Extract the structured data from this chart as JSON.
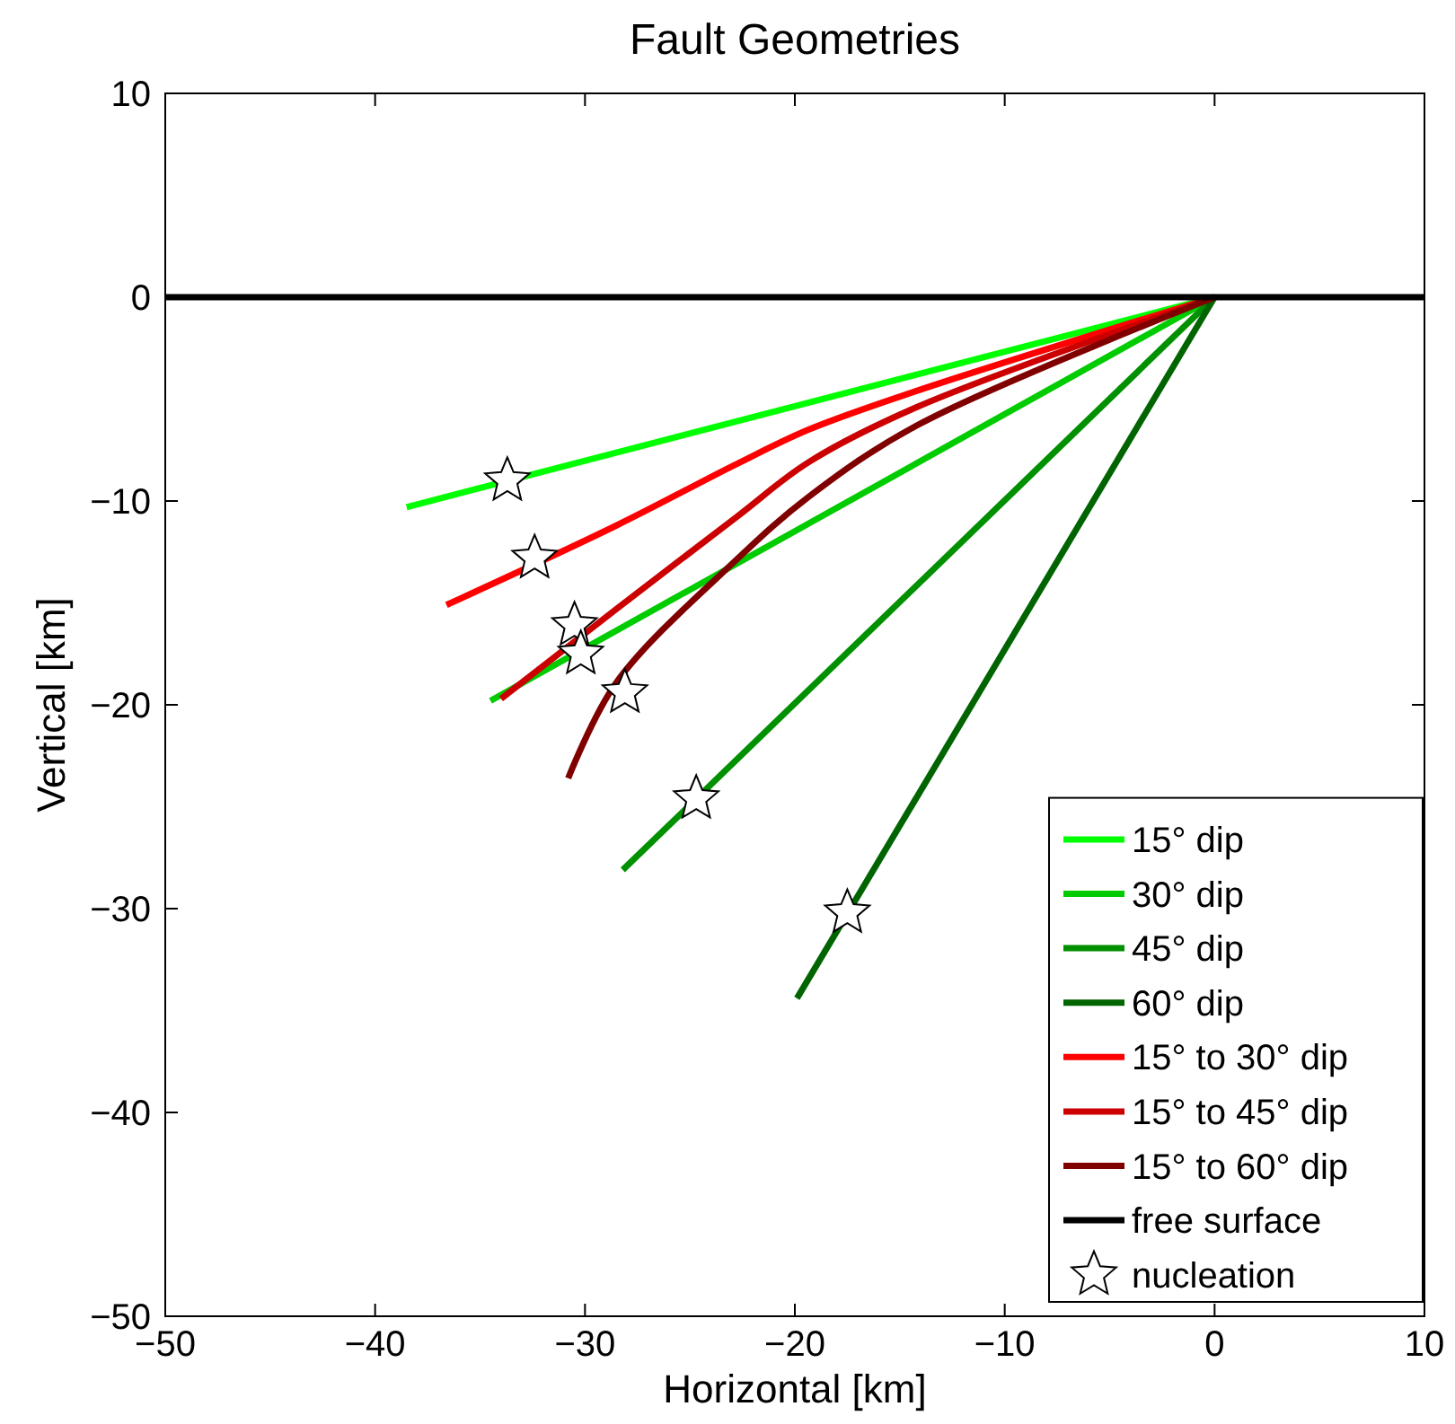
{
  "chart_data": {
    "type": "line",
    "title": "Fault Geometries",
    "xlabel": "Horizontal [km]",
    "ylabel": "Vertical [km]",
    "xlim": [
      -50,
      10
    ],
    "xticks": [
      -50,
      -40,
      -30,
      -20,
      -10,
      0,
      10
    ],
    "ylim": [
      -50,
      10
    ],
    "yticks": [
      -50,
      -40,
      -30,
      -20,
      -10,
      0,
      10
    ],
    "grid": false,
    "legend": "bottom right",
    "line_style": "solid",
    "series": [
      {
        "name": "15° dip",
        "color": "#00ff00",
        "x": [
          0,
          -38.5
        ],
        "values": [
          0,
          -10.3
        ]
      },
      {
        "name": "30° dip",
        "color": "#00cc00",
        "x": [
          0,
          -34.5
        ],
        "values": [
          0,
          -19.8
        ]
      },
      {
        "name": "45° dip",
        "color": "#009000",
        "x": [
          0,
          -28.2
        ],
        "values": [
          0,
          -28.1
        ]
      },
      {
        "name": "60° dip",
        "color": "#006400",
        "x": [
          0,
          -19.9
        ],
        "values": [
          0,
          -34.4
        ]
      },
      {
        "name": "15° to 30° dip",
        "color": "#ff0000",
        "x": [
          0,
          -14.2,
          -19.35,
          -22.8,
          -28.5,
          -36.6
        ],
        "values": [
          0,
          -4.6,
          -6.5,
          -8.2,
          -11.2,
          -15.1
        ]
      },
      {
        "name": "15° to 45° dip",
        "color": "#cc0000",
        "x": [
          0,
          -14.2,
          -19.35,
          -22.8,
          -28.5,
          -34.0
        ],
        "values": [
          0,
          -5.4,
          -8.1,
          -10.8,
          -15.3,
          -19.7
        ]
      },
      {
        "name": "15° to 60° dip",
        "color": "#800000",
        "x": [
          0,
          -14.2,
          -19.35,
          -22.8,
          -28.5,
          -30.8
        ],
        "values": [
          0,
          -6.3,
          -9.8,
          -12.9,
          -18.9,
          -23.6
        ]
      },
      {
        "name": "free surface",
        "color": "#000000",
        "x": [
          -50,
          10
        ],
        "values": [
          0,
          0
        ]
      },
      {
        "name": "nucleation",
        "type": "scatter",
        "marker": "star",
        "color": "#000000",
        "x": [
          -33.7,
          -32.4,
          -30.5,
          -30.2,
          -28.1,
          -24.7,
          -17.5
        ],
        "values": [
          -9.0,
          -12.8,
          -16.1,
          -17.5,
          -19.4,
          -24.6,
          -30.2
        ]
      }
    ]
  }
}
